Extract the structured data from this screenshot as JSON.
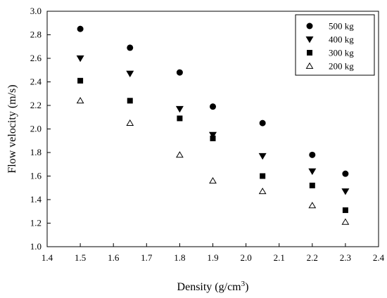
{
  "chart_data": {
    "type": "scatter",
    "xlabel": "Density (g/cm",
    "xlabel_sup": "3",
    "xlabel_close": ")",
    "ylabel": "Flow velocity (m/s)",
    "xlim": [
      1.4,
      2.4
    ],
    "ylim": [
      1.0,
      3.0
    ],
    "xticks": [
      "1.4",
      "1.5",
      "1.6",
      "1.7",
      "1.8",
      "1.9",
      "2.0",
      "2.1",
      "2.2",
      "2.3",
      "2.4"
    ],
    "yticks": [
      "1.0",
      "1.2",
      "1.4",
      "1.6",
      "1.8",
      "2.0",
      "2.2",
      "2.4",
      "2.6",
      "2.8",
      "3.0"
    ],
    "grid": false,
    "legend_position": "top-right",
    "x": [
      1.5,
      1.65,
      1.8,
      1.9,
      2.05,
      2.2,
      2.3
    ],
    "series": [
      {
        "name": "500 kg",
        "marker": "circle",
        "values": [
          2.85,
          2.69,
          2.48,
          2.19,
          2.05,
          1.78,
          1.62
        ]
      },
      {
        "name": "400 kg",
        "marker": "triangle-down",
        "values": [
          2.6,
          2.47,
          2.17,
          1.95,
          1.77,
          1.64,
          1.47
        ]
      },
      {
        "name": "300 kg",
        "marker": "square",
        "values": [
          2.41,
          2.24,
          2.09,
          1.92,
          1.6,
          1.52,
          1.31
        ]
      },
      {
        "name": "200 kg",
        "marker": "triangle-up-open",
        "values": [
          2.24,
          2.05,
          1.78,
          1.56,
          1.47,
          1.35,
          1.21
        ]
      }
    ],
    "colors": {
      "marker": "#000000",
      "axis": "#000000"
    }
  }
}
